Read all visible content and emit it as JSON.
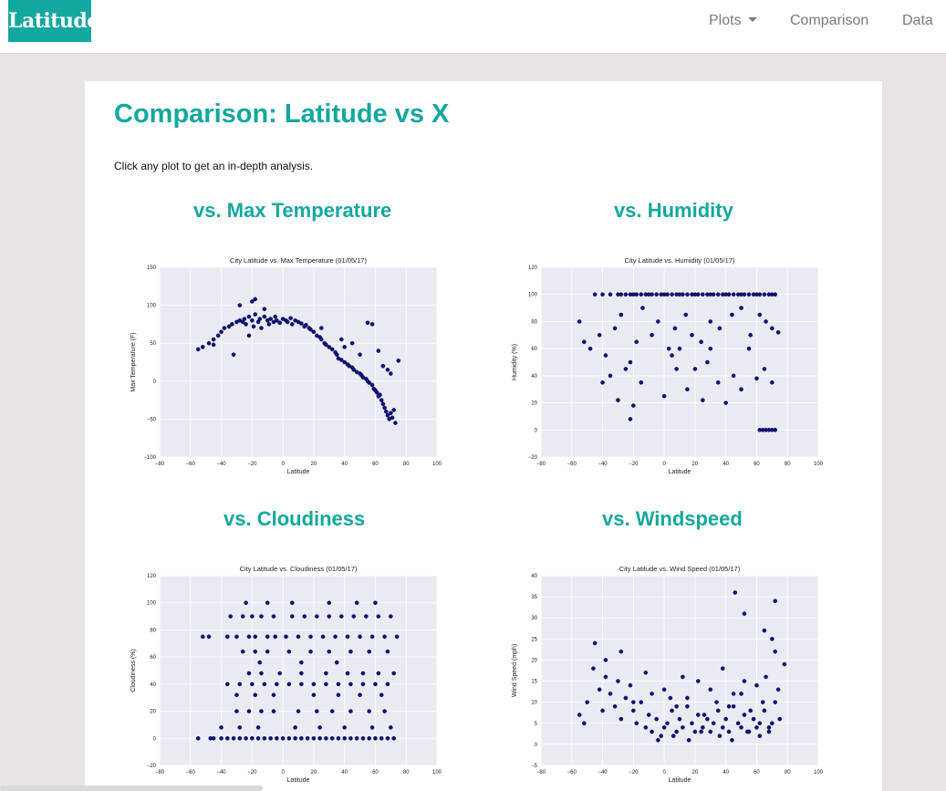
{
  "nav": {
    "brand": "Latitude",
    "plots_label": "Plots",
    "comparison_label": "Comparison",
    "data_label": "Data"
  },
  "page": {
    "title": "Comparison: Latitude vs X",
    "intro": "Click any plot to get an in-depth analysis."
  },
  "sections": [
    {
      "title": "vs. Max Temperature"
    },
    {
      "title": "vs. Humidity"
    },
    {
      "title": "vs. Cloudiness"
    },
    {
      "title": "vs. Windspeed"
    }
  ],
  "colors": {
    "accent": "#13a89e",
    "point": "#10127f",
    "plot_bg": "#eaeaf2"
  },
  "chart_data": [
    {
      "type": "scatter",
      "title": "City Latitude vs. Max Temperature (01/05/17)",
      "xlabel": "Latitude",
      "ylabel": "Max Temperature (F)",
      "xlim": [
        -80,
        100
      ],
      "ylim": [
        -100,
        150
      ],
      "xticks": [
        "−80",
        "−60",
        "−40",
        "−20",
        "0",
        "20",
        "40",
        "60",
        "80",
        "100"
      ],
      "yticks": [
        "−100",
        "−50",
        "0",
        "50",
        "100",
        "150"
      ],
      "ytick_values": [
        -100,
        -50,
        0,
        50,
        100,
        150
      ],
      "grid": true,
      "x": [
        -55,
        -52,
        -48,
        -45,
        -42,
        -40,
        -38,
        -35,
        -33,
        -30,
        -28,
        -26,
        -25,
        -24,
        -22,
        -20,
        -19,
        -18,
        -16,
        -15,
        -14,
        -12,
        -10,
        -9,
        -8,
        -6,
        -5,
        -4,
        -2,
        0,
        2,
        3,
        5,
        6,
        8,
        10,
        12,
        14,
        15,
        17,
        18,
        20,
        22,
        24,
        25,
        27,
        28,
        30,
        32,
        34,
        35,
        36,
        38,
        40,
        42,
        43,
        45,
        46,
        48,
        50,
        51,
        52,
        54,
        55,
        56,
        58,
        59,
        60,
        61,
        62,
        63,
        64,
        65,
        66,
        67,
        68,
        69,
        70,
        71,
        72,
        73,
        75,
        -20,
        -28,
        -18,
        -12,
        55,
        58,
        38,
        40,
        50,
        45,
        65,
        68,
        70,
        62,
        -45,
        -32,
        -22,
        25
      ],
      "y": [
        42,
        45,
        50,
        55,
        60,
        65,
        70,
        72,
        75,
        78,
        80,
        78,
        82,
        75,
        85,
        80,
        72,
        88,
        78,
        82,
        70,
        85,
        80,
        75,
        82,
        78,
        85,
        80,
        77,
        82,
        80,
        78,
        83,
        75,
        80,
        78,
        76,
        72,
        74,
        70,
        68,
        65,
        60,
        58,
        55,
        50,
        48,
        45,
        42,
        38,
        35,
        30,
        28,
        25,
        22,
        20,
        18,
        15,
        12,
        10,
        8,
        5,
        3,
        0,
        -2,
        -5,
        -10,
        -12,
        -15,
        -20,
        -18,
        -25,
        -30,
        -35,
        -40,
        -45,
        -50,
        -42,
        -48,
        -38,
        -55,
        27,
        105,
        100,
        108,
        95,
        77,
        75,
        55,
        45,
        35,
        50,
        20,
        15,
        10,
        40,
        48,
        35,
        60,
        70
      ]
    },
    {
      "type": "scatter",
      "title": "City Latitude vs. Humidity (01/05/17)",
      "xlabel": "Latitude",
      "ylabel": "Humidity (%)",
      "xlim": [
        -80,
        100
      ],
      "ylim": [
        -20,
        120
      ],
      "xticks": [
        "−80",
        "−60",
        "−40",
        "−20",
        "0",
        "20",
        "40",
        "60",
        "80",
        "100"
      ],
      "yticks": [
        "−20",
        "0",
        "20",
        "40",
        "60",
        "80",
        "100",
        "120"
      ],
      "ytick_values": [
        -20,
        0,
        20,
        40,
        60,
        80,
        100,
        120
      ],
      "grid": true,
      "x": [
        -45,
        -40,
        -35,
        -30,
        -28,
        -25,
        -22,
        -20,
        -18,
        -15,
        -12,
        -10,
        -8,
        -5,
        -2,
        0,
        2,
        5,
        8,
        10,
        12,
        15,
        18,
        20,
        22,
        25,
        28,
        30,
        32,
        35,
        38,
        40,
        42,
        45,
        48,
        50,
        52,
        55,
        58,
        60,
        62,
        65,
        68,
        70,
        72,
        -55,
        -52,
        -48,
        -42,
        -38,
        -32,
        -28,
        -22,
        -18,
        -14,
        -8,
        -4,
        3,
        7,
        14,
        18,
        24,
        30,
        36,
        44,
        50,
        56,
        62,
        66,
        70,
        74,
        -35,
        -25,
        -15,
        5,
        10,
        20,
        28,
        35,
        45,
        55,
        62,
        64,
        66,
        68,
        70,
        72,
        -40,
        -30,
        -20,
        0,
        15,
        25,
        40,
        50,
        60,
        65,
        70,
        -22,
        8,
        30
      ],
      "y": [
        100,
        100,
        100,
        100,
        100,
        100,
        100,
        100,
        100,
        100,
        100,
        100,
        100,
        100,
        100,
        100,
        100,
        100,
        100,
        100,
        100,
        100,
        100,
        100,
        100,
        100,
        100,
        100,
        100,
        100,
        100,
        100,
        100,
        100,
        100,
        100,
        100,
        100,
        100,
        100,
        100,
        100,
        100,
        100,
        100,
        80,
        65,
        60,
        70,
        55,
        75,
        85,
        50,
        65,
        90,
        70,
        80,
        60,
        75,
        85,
        70,
        65,
        80,
        75,
        85,
        90,
        70,
        85,
        80,
        75,
        72,
        40,
        45,
        35,
        55,
        60,
        45,
        50,
        35,
        40,
        60,
        0,
        0,
        0,
        0,
        0,
        0,
        35,
        22,
        18,
        25,
        30,
        22,
        20,
        30,
        38,
        45,
        35,
        8,
        45,
        60
      ]
    },
    {
      "type": "scatter",
      "title": "City Latitude vs. Cloudiness (01/05/17)",
      "xlabel": "Latitude",
      "ylabel": "Cloudiness (%)",
      "xlim": [
        -80,
        100
      ],
      "ylim": [
        -20,
        120
      ],
      "xticks": [
        "−80",
        "−60",
        "−40",
        "−20",
        "0",
        "20",
        "40",
        "60",
        "80",
        "100"
      ],
      "yticks": [
        "−20",
        "0",
        "20",
        "40",
        "60",
        "80",
        "100",
        "120"
      ],
      "ytick_values": [
        -20,
        0,
        20,
        40,
        60,
        80,
        100,
        120
      ],
      "grid": true,
      "x": [
        -55,
        -47,
        -45,
        -40,
        -36,
        -32,
        -28,
        -24,
        -20,
        -16,
        -12,
        -8,
        -4,
        0,
        4,
        8,
        12,
        16,
        20,
        24,
        28,
        32,
        36,
        40,
        44,
        48,
        52,
        56,
        60,
        64,
        68,
        72,
        -52,
        -48,
        -36,
        -30,
        -22,
        -18,
        -10,
        -5,
        2,
        10,
        18,
        26,
        34,
        42,
        50,
        58,
        66,
        74,
        -34,
        -26,
        -20,
        -14,
        -6,
        6,
        14,
        22,
        30,
        38,
        46,
        54,
        62,
        70,
        -36,
        -28,
        -20,
        -12,
        -4,
        4,
        12,
        20,
        28,
        36,
        44,
        52,
        60,
        68,
        -30,
        -22,
        -14,
        -6,
        10,
        22,
        32,
        44,
        56,
        66,
        -26,
        -18,
        -10,
        4,
        18,
        30,
        44,
        56,
        68,
        -40,
        -28,
        -16,
        8,
        24,
        40,
        58,
        70,
        -22,
        -14,
        -2,
        12,
        28,
        42,
        52,
        62,
        72,
        -24,
        -10,
        6,
        30,
        48,
        60,
        -30,
        -18,
        -6,
        20,
        36,
        50,
        64,
        -15,
        12,
        35
      ],
      "y": [
        0,
        0,
        0,
        0,
        0,
        0,
        0,
        0,
        0,
        0,
        0,
        0,
        0,
        0,
        0,
        0,
        0,
        0,
        0,
        0,
        0,
        0,
        0,
        0,
        0,
        0,
        0,
        0,
        0,
        0,
        0,
        0,
        75,
        75,
        75,
        75,
        75,
        75,
        75,
        75,
        75,
        75,
        75,
        75,
        75,
        75,
        75,
        75,
        75,
        75,
        90,
        90,
        90,
        90,
        90,
        90,
        90,
        90,
        90,
        90,
        90,
        90,
        90,
        90,
        40,
        40,
        40,
        40,
        40,
        40,
        40,
        40,
        40,
        40,
        40,
        40,
        40,
        40,
        20,
        20,
        20,
        20,
        20,
        20,
        20,
        20,
        20,
        20,
        64,
        64,
        64,
        64,
        64,
        64,
        64,
        64,
        64,
        8,
        8,
        8,
        8,
        8,
        8,
        8,
        8,
        48,
        48,
        48,
        48,
        48,
        48,
        48,
        48,
        48,
        100,
        100,
        100,
        100,
        100,
        100,
        32,
        32,
        32,
        32,
        32,
        32,
        32,
        56,
        56,
        56
      ]
    },
    {
      "type": "scatter",
      "title": "City Latitude vs. Wind Speed (01/05/17)",
      "xlabel": "Latitude",
      "ylabel": "Wind Speed (mph)",
      "xlim": [
        -80,
        100
      ],
      "ylim": [
        -5,
        40
      ],
      "xticks": [
        "−80",
        "−60",
        "−40",
        "−20",
        "0",
        "20",
        "40",
        "60",
        "80",
        "100"
      ],
      "yticks": [
        "−5",
        "0",
        "5",
        "10",
        "15",
        "20",
        "25",
        "30",
        "35",
        "40"
      ],
      "ytick_values": [
        -5,
        0,
        5,
        10,
        15,
        20,
        25,
        30,
        35,
        40
      ],
      "grid": true,
      "x": [
        -55,
        -52,
        -50,
        -46,
        -42,
        -40,
        -38,
        -35,
        -32,
        -30,
        -28,
        -25,
        -22,
        -20,
        -18,
        -15,
        -12,
        -10,
        -8,
        -5,
        -2,
        0,
        2,
        5,
        8,
        10,
        12,
        15,
        18,
        20,
        22,
        25,
        28,
        30,
        32,
        35,
        38,
        40,
        42,
        45,
        48,
        50,
        52,
        55,
        58,
        60,
        62,
        65,
        68,
        70,
        72,
        75,
        78,
        -45,
        -38,
        -28,
        -20,
        -12,
        0,
        8,
        15,
        22,
        30,
        38,
        45,
        52,
        60,
        66,
        72,
        -8,
        4,
        12,
        26,
        34,
        42,
        50,
        56,
        64,
        70,
        -4,
        6,
        16,
        24,
        36,
        44,
        54,
        62,
        68,
        46,
        52,
        72,
        65,
        74
      ],
      "y": [
        7,
        5,
        10,
        18,
        13,
        8,
        20,
        12,
        9,
        15,
        6,
        11,
        14,
        8,
        5,
        10,
        4,
        7,
        3,
        6,
        2,
        4,
        5,
        8,
        3,
        6,
        4,
        9,
        5,
        3,
        7,
        4,
        6,
        3,
        5,
        8,
        4,
        6,
        3,
        9,
        5,
        4,
        7,
        3,
        6,
        4,
        5,
        8,
        3,
        5,
        10,
        6,
        19,
        24,
        16,
        22,
        10,
        17,
        13,
        9,
        11,
        15,
        13,
        18,
        12,
        15,
        14,
        16,
        22,
        12,
        11,
        16,
        7,
        10,
        9,
        12,
        8,
        10,
        25,
        1,
        2,
        1,
        3,
        2,
        1,
        3,
        2,
        4,
        36,
        31,
        34,
        27,
        13
      ]
    }
  ]
}
